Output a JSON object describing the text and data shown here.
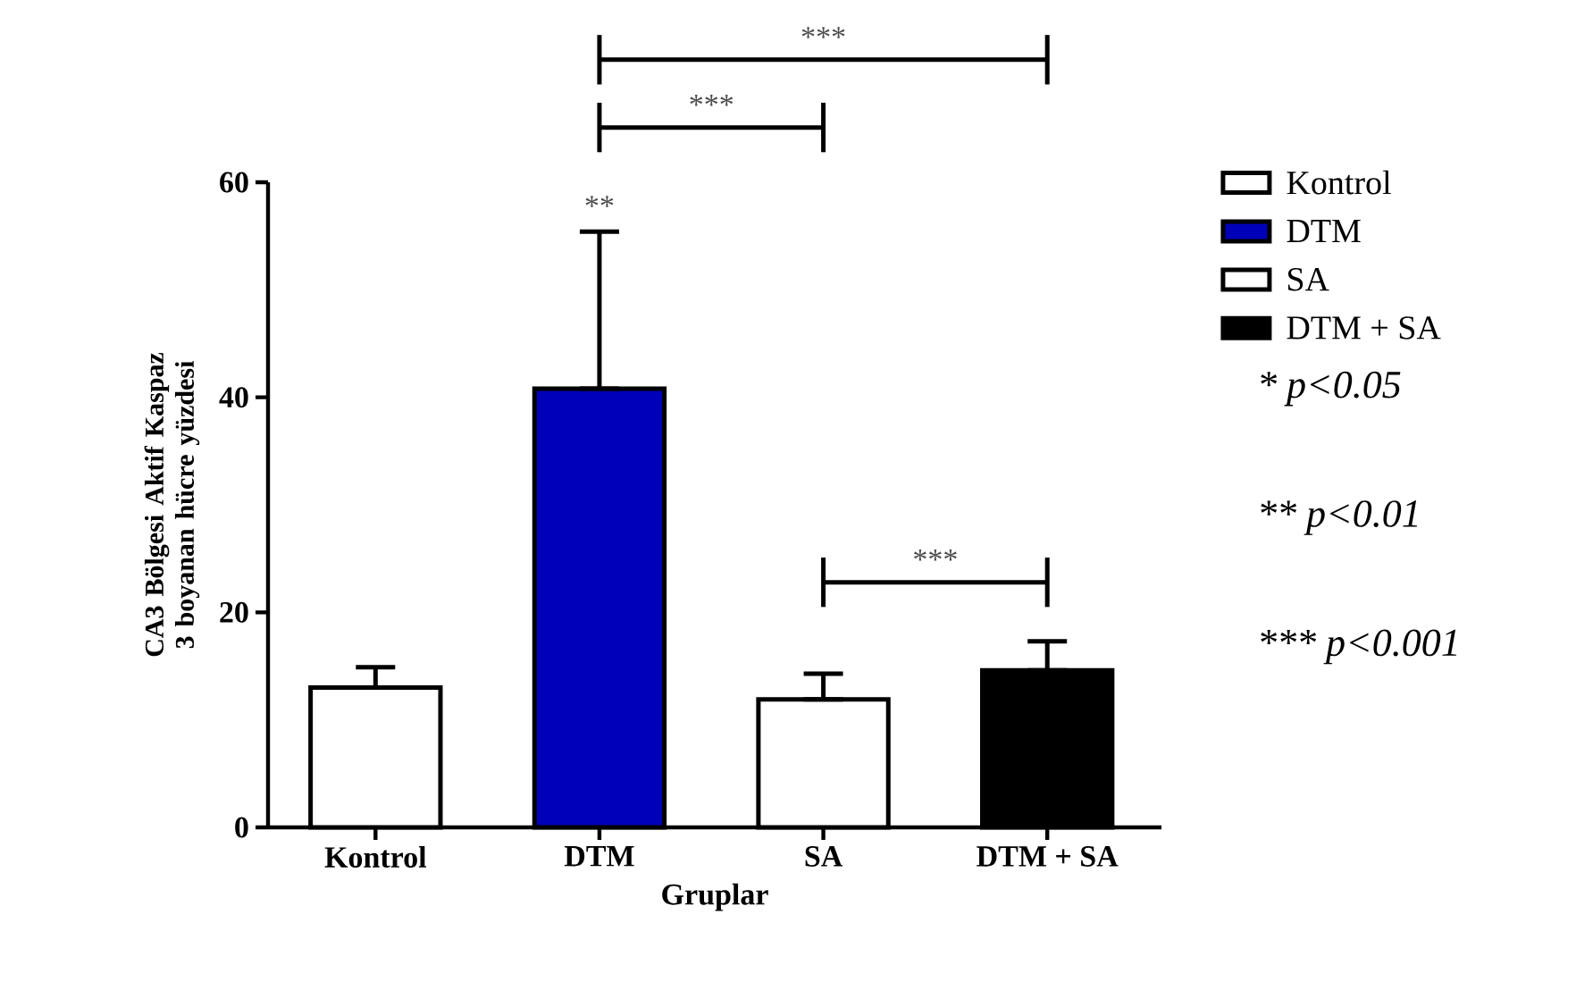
{
  "chart_data": {
    "type": "bar",
    "xlabel": "Gruplar",
    "ylabel": "CA3 Bölgesi Aktif Kaspaz 3 boyanan hücre yüzdesi",
    "categories": [
      "Kontrol",
      "DTM",
      "SA",
      "DTM + SA"
    ],
    "series": [
      {
        "name": "Kontrol",
        "color": "#ffffff",
        "values": [
          13.0,
          null,
          null,
          null
        ],
        "errors": [
          [
            13.0,
            14.9
          ],
          null,
          null,
          null
        ]
      },
      {
        "name": "DTM",
        "color": "#0000b8",
        "values": [
          null,
          40.8,
          null,
          null
        ],
        "errors": [
          null,
          [
            40.8,
            55.4
          ],
          null,
          null
        ]
      },
      {
        "name": "SA",
        "color": "#ffffff",
        "values": [
          null,
          null,
          11.9,
          null
        ],
        "errors": [
          null,
          null,
          [
            11.9,
            14.3
          ],
          null
        ]
      },
      {
        "name": "DTM + SA",
        "color": "#000000",
        "values": [
          null,
          null,
          null,
          14.6
        ],
        "errors": [
          null,
          null,
          null,
          [
            14.6,
            17.3
          ]
        ]
      }
    ],
    "ylim": [
      0,
      60
    ],
    "yticks": [
      0,
      20,
      40,
      60
    ],
    "grid": false,
    "legend": "top right",
    "annotations": [
      "**",
      "***",
      "***",
      "***",
      "* p<0.05",
      "** p<0.01",
      "*** p<0.001"
    ]
  }
}
